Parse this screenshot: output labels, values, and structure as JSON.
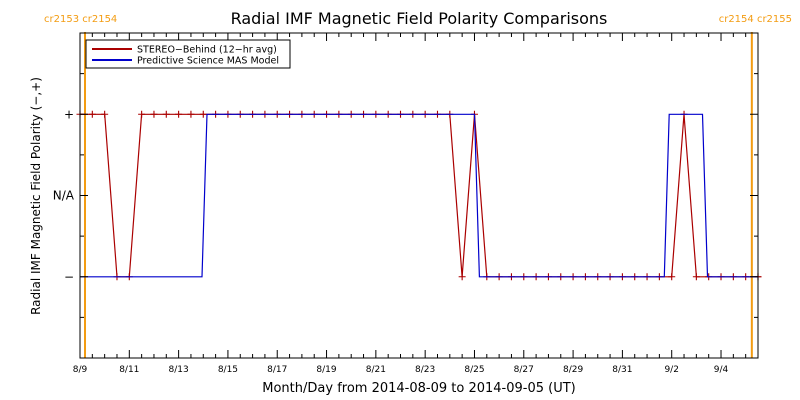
{
  "chart_data": {
    "type": "line",
    "title": "Radial IMF Magnetic Field Polarity Comparisons",
    "xlabel": "Month/Day from 2014-08-09 to 2014-09-05 (UT)",
    "ylabel": "Radial IMF Magnetic Field Polarity (−,+)",
    "xlim": [
      0,
      27.5
    ],
    "ylim": [
      -2,
      2
    ],
    "x_ticks": [
      {
        "x": 0,
        "label": "8/9"
      },
      {
        "x": 2,
        "label": "8/11"
      },
      {
        "x": 4,
        "label": "8/13"
      },
      {
        "x": 6,
        "label": "8/15"
      },
      {
        "x": 8,
        "label": "8/17"
      },
      {
        "x": 10,
        "label": "8/19"
      },
      {
        "x": 12,
        "label": "8/21"
      },
      {
        "x": 14,
        "label": "8/23"
      },
      {
        "x": 16,
        "label": "8/25"
      },
      {
        "x": 18,
        "label": "8/27"
      },
      {
        "x": 20,
        "label": "8/29"
      },
      {
        "x": 22,
        "label": "8/31"
      },
      {
        "x": 24,
        "label": "9/2"
      },
      {
        "x": 26,
        "label": "9/4"
      }
    ],
    "y_ticks": [
      {
        "y": 1,
        "label": "+"
      },
      {
        "y": 0,
        "label": "N/A"
      },
      {
        "y": -1,
        "label": "−"
      }
    ],
    "carrington_left": [
      {
        "x": 0,
        "labels": [
          "cr2153",
          "cr2154"
        ]
      }
    ],
    "carrington_right": [
      {
        "x": 27.25,
        "labels": [
          "cr2154",
          "cr2155"
        ]
      }
    ],
    "legend": {
      "placement": "top-left",
      "entries": [
        {
          "label": "STEREO−Behind (12−hr avg)",
          "color": "#aa0000"
        },
        {
          "label": "Predictive Science MAS Model",
          "color": "#0000cc"
        }
      ]
    },
    "series": [
      {
        "name": "STEREO−Behind (12−hr avg)",
        "color": "#aa0000",
        "markers": true,
        "points": [
          [
            0,
            1
          ],
          [
            0.5,
            1
          ],
          [
            1,
            1
          ],
          [
            1.5,
            -1
          ],
          [
            2,
            -1
          ],
          [
            2.5,
            1
          ],
          [
            3,
            1
          ],
          [
            3.5,
            1
          ],
          [
            4,
            1
          ],
          [
            4.5,
            1
          ],
          [
            5,
            1
          ],
          [
            5.5,
            1
          ],
          [
            6,
            1
          ],
          [
            6.5,
            1
          ],
          [
            7,
            1
          ],
          [
            7.5,
            1
          ],
          [
            8,
            1
          ],
          [
            8.5,
            1
          ],
          [
            9,
            1
          ],
          [
            9.5,
            1
          ],
          [
            10,
            1
          ],
          [
            10.5,
            1
          ],
          [
            11,
            1
          ],
          [
            11.5,
            1
          ],
          [
            12,
            1
          ],
          [
            12.5,
            1
          ],
          [
            13,
            1
          ],
          [
            13.5,
            1
          ],
          [
            14,
            1
          ],
          [
            14.5,
            1
          ],
          [
            15,
            1
          ],
          [
            15.5,
            -1
          ],
          [
            16,
            1
          ],
          [
            16.5,
            -1
          ],
          [
            17,
            -1
          ],
          [
            17.5,
            -1
          ],
          [
            18,
            -1
          ],
          [
            18.5,
            -1
          ],
          [
            19,
            -1
          ],
          [
            19.5,
            -1
          ],
          [
            20,
            -1
          ],
          [
            20.5,
            -1
          ],
          [
            21,
            -1
          ],
          [
            21.5,
            -1
          ],
          [
            22,
            -1
          ],
          [
            22.5,
            -1
          ],
          [
            23,
            -1
          ],
          [
            23.5,
            -1
          ],
          [
            24,
            -1
          ],
          [
            24.5,
            1
          ],
          [
            25,
            -1
          ],
          [
            25.5,
            -1
          ],
          [
            26,
            -1
          ],
          [
            26.5,
            -1
          ],
          [
            27,
            -1
          ],
          [
            27.5,
            -1
          ],
          [
            28,
            -1
          ]
        ]
      },
      {
        "name": "Predictive Science MAS Model",
        "color": "#0000cc",
        "markers": false,
        "points": [
          [
            0,
            -1
          ],
          [
            4.95,
            -1
          ],
          [
            5.15,
            1
          ],
          [
            16.0,
            1
          ],
          [
            16.2,
            -1
          ],
          [
            23.7,
            -1
          ],
          [
            23.9,
            1
          ],
          [
            25.25,
            1
          ],
          [
            25.45,
            -1
          ],
          [
            28,
            -1
          ]
        ]
      }
    ]
  }
}
